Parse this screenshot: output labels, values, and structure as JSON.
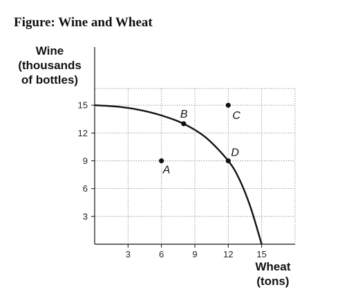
{
  "chart_data": {
    "type": "line",
    "title": "Figure: Wine and Wheat",
    "ylabel_lines": [
      "Wine",
      "(thousands",
      "of bottles)"
    ],
    "xlabel_lines": [
      "Wheat",
      "(tons)"
    ],
    "xlim": [
      0,
      18
    ],
    "ylim": [
      0,
      16.8
    ],
    "xticks": [
      3,
      6,
      9,
      12,
      15
    ],
    "yticks": [
      3,
      6,
      9,
      12,
      15
    ],
    "grid": true,
    "series": [
      {
        "points": [
          {
            "x": 0,
            "y": 15
          },
          {
            "x": 2,
            "y": 14.85
          },
          {
            "x": 4,
            "y": 14.5
          },
          {
            "x": 6,
            "y": 13.9
          },
          {
            "x": 8,
            "y": 13
          },
          {
            "x": 10,
            "y": 11.5
          },
          {
            "x": 12,
            "y": 9
          },
          {
            "x": 13,
            "y": 7
          },
          {
            "x": 14,
            "y": 4
          },
          {
            "x": 15,
            "y": 0
          }
        ]
      }
    ],
    "points": [
      {
        "label": "A",
        "x": 6,
        "y": 9
      },
      {
        "label": "B",
        "x": 8,
        "y": 13
      },
      {
        "label": "C",
        "x": 12,
        "y": 15
      },
      {
        "label": "D",
        "x": 12,
        "y": 9
      }
    ]
  }
}
